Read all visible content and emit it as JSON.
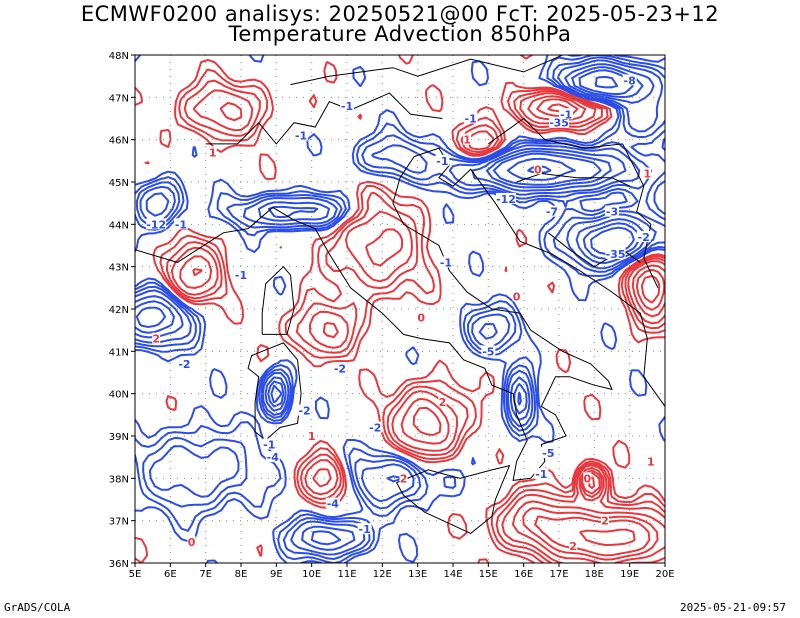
{
  "title_line1": "ECMWF0200 analisys: 20250521@00 FcT: 2025-05-23+12",
  "title_line2": "Temperature Advection 850hPa",
  "footer_left": "GrADS/COLA",
  "footer_right": "2025-05-21-09:57",
  "colors": {
    "positive": "#e8383d",
    "negative": "#2b4de8",
    "coast": "#000000",
    "grid": "#888888"
  },
  "map": {
    "lon_range": [
      5,
      20
    ],
    "lat_range": [
      36,
      48
    ],
    "lat_ticks": [
      {
        "value": 48,
        "label": "48N"
      },
      {
        "value": 47,
        "label": "47N"
      },
      {
        "value": 46,
        "label": "46N"
      },
      {
        "value": 45,
        "label": "45N"
      },
      {
        "value": 44,
        "label": "44N"
      },
      {
        "value": 43,
        "label": "43N"
      },
      {
        "value": 42,
        "label": "42N"
      },
      {
        "value": 41,
        "label": "41N"
      },
      {
        "value": 40,
        "label": "40N"
      },
      {
        "value": 39,
        "label": "39N"
      },
      {
        "value": 38,
        "label": "38N"
      },
      {
        "value": 37,
        "label": "37N"
      },
      {
        "value": 36,
        "label": "36N"
      }
    ],
    "lon_ticks": [
      {
        "value": 5,
        "label": "5E"
      },
      {
        "value": 6,
        "label": "6E"
      },
      {
        "value": 7,
        "label": "7E"
      },
      {
        "value": 8,
        "label": "8E"
      },
      {
        "value": 9,
        "label": "9E"
      },
      {
        "value": 10,
        "label": "10E"
      },
      {
        "value": 11,
        "label": "11E"
      },
      {
        "value": 12,
        "label": "12E"
      },
      {
        "value": 13,
        "label": "13E"
      },
      {
        "value": 14,
        "label": "14E"
      },
      {
        "value": 15,
        "label": "15E"
      },
      {
        "value": 16,
        "label": "16E"
      },
      {
        "value": 17,
        "label": "17E"
      },
      {
        "value": 18,
        "label": "18E"
      },
      {
        "value": 19,
        "label": "19E"
      },
      {
        "value": 20,
        "label": "20E"
      }
    ],
    "contour_labels": [
      {
        "lon": 5.6,
        "lat": 44.0,
        "text": "-12",
        "sign": "negative"
      },
      {
        "lon": 6.3,
        "lat": 44.0,
        "text": "-1",
        "sign": "negative"
      },
      {
        "lon": 15.5,
        "lat": 44.6,
        "text": "-12",
        "sign": "negative"
      },
      {
        "lon": 16.8,
        "lat": 44.3,
        "text": "-7",
        "sign": "negative"
      },
      {
        "lon": 18.5,
        "lat": 44.3,
        "text": "-3",
        "sign": "negative"
      },
      {
        "lon": 18.6,
        "lat": 43.3,
        "text": "-35",
        "sign": "negative"
      },
      {
        "lon": 17.0,
        "lat": 46.4,
        "text": "-35",
        "sign": "negative"
      },
      {
        "lon": 17.2,
        "lat": 46.6,
        "text": "-1",
        "sign": "negative"
      },
      {
        "lon": 8.9,
        "lat": 38.5,
        "text": "-4",
        "sign": "negative"
      },
      {
        "lon": 8.8,
        "lat": 38.8,
        "text": "-1",
        "sign": "negative"
      },
      {
        "lon": 9.8,
        "lat": 39.6,
        "text": "-2",
        "sign": "negative"
      },
      {
        "lon": 10.8,
        "lat": 40.6,
        "text": "-2",
        "sign": "negative"
      },
      {
        "lon": 11.8,
        "lat": 39.2,
        "text": "-2",
        "sign": "negative"
      },
      {
        "lon": 16.7,
        "lat": 38.6,
        "text": "-5",
        "sign": "negative"
      },
      {
        "lon": 16.5,
        "lat": 38.1,
        "text": "-1",
        "sign": "negative"
      },
      {
        "lon": 11.5,
        "lat": 36.8,
        "text": "-1",
        "sign": "negative"
      },
      {
        "lon": 10.6,
        "lat": 37.4,
        "text": "-4",
        "sign": "negative"
      },
      {
        "lon": 6.4,
        "lat": 40.7,
        "text": "-2",
        "sign": "negative"
      },
      {
        "lon": 8.0,
        "lat": 42.8,
        "text": "-1",
        "sign": "negative"
      },
      {
        "lon": 13.8,
        "lat": 43.1,
        "text": "-1",
        "sign": "negative"
      },
      {
        "lon": 9.7,
        "lat": 46.1,
        "text": "-1",
        "sign": "negative"
      },
      {
        "lon": 14.5,
        "lat": 46.5,
        "text": "-1",
        "sign": "negative"
      },
      {
        "lon": 11.0,
        "lat": 46.8,
        "text": "-1",
        "sign": "negative"
      },
      {
        "lon": 19.0,
        "lat": 47.4,
        "text": "-8",
        "sign": "negative"
      },
      {
        "lon": 15.0,
        "lat": 41.0,
        "text": "-5",
        "sign": "negative"
      },
      {
        "lon": 13.7,
        "lat": 45.5,
        "text": "-1",
        "sign": "negative"
      },
      {
        "lon": 5.6,
        "lat": 41.3,
        "text": "2",
        "sign": "positive"
      },
      {
        "lon": 6.6,
        "lat": 36.5,
        "text": "0",
        "sign": "positive"
      },
      {
        "lon": 17.8,
        "lat": 38.0,
        "text": "0",
        "sign": "positive"
      },
      {
        "lon": 18.3,
        "lat": 37.0,
        "text": "2",
        "sign": "positive"
      },
      {
        "lon": 17.4,
        "lat": 36.4,
        "text": "2",
        "sign": "positive"
      },
      {
        "lon": 19.4,
        "lat": 43.7,
        "text": "-2",
        "sign": "negative"
      },
      {
        "lon": 15.8,
        "lat": 42.3,
        "text": "0",
        "sign": "positive"
      },
      {
        "lon": 13.1,
        "lat": 41.8,
        "text": "0",
        "sign": "positive"
      },
      {
        "lon": 14.4,
        "lat": 46.0,
        "text": "1",
        "sign": "positive"
      },
      {
        "lon": 7.2,
        "lat": 45.7,
        "text": "1",
        "sign": "positive"
      },
      {
        "lon": 10.0,
        "lat": 39.0,
        "text": "1",
        "sign": "positive"
      },
      {
        "lon": 12.6,
        "lat": 38.0,
        "text": "2",
        "sign": "positive"
      },
      {
        "lon": 13.7,
        "lat": 39.8,
        "text": "2",
        "sign": "positive"
      },
      {
        "lon": 16.4,
        "lat": 45.3,
        "text": "0",
        "sign": "positive"
      },
      {
        "lon": 19.5,
        "lat": 45.2,
        "text": "1",
        "sign": "positive"
      },
      {
        "lon": 19.6,
        "lat": 38.4,
        "text": "1",
        "sign": "positive"
      }
    ]
  }
}
